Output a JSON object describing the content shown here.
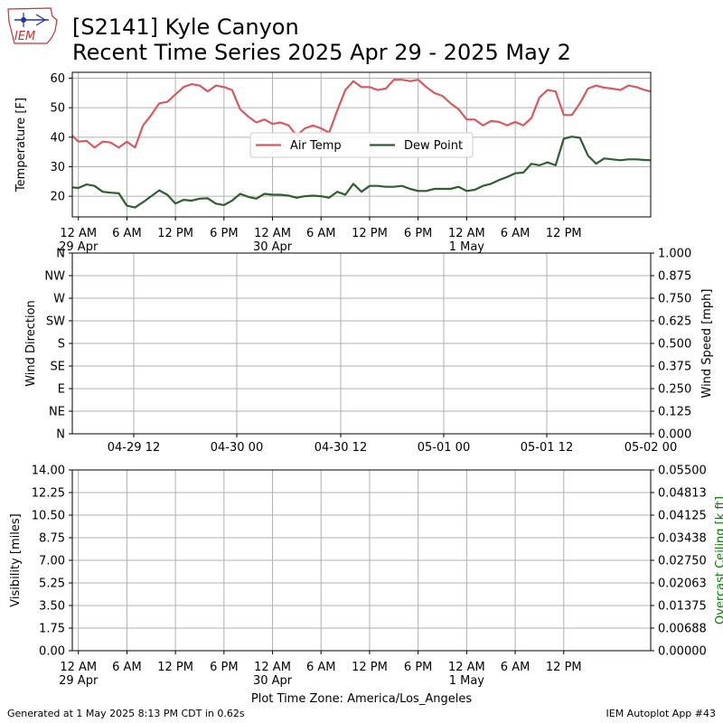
{
  "title_line1": "[S2141] Kyle Canyon",
  "title_line2": "Recent Time Series 2025 Apr 29 - 2025 May 2",
  "logo_text": "IEM",
  "footer_left": "Generated at 1 May 2025 8:13 PM CDT in 0.62s",
  "footer_right": "IEM Autoplot App #43",
  "colors": {
    "air_temp": "#d9595f",
    "dew_point": "#2e5f2e",
    "grid": "#b0b0b0",
    "ceiling_label": "#008000"
  },
  "chart_data": [
    {
      "type": "line",
      "ylabel": "Temperature [F]",
      "ylim": [
        13,
        62
      ],
      "yticks": [
        20,
        30,
        40,
        50,
        60
      ],
      "xlim_hours": [
        -0.75,
        70.75
      ],
      "x_axis_start": "2025-04-29 00:00 America/Los_Angeles",
      "x_ticks": [
        {
          "hour": 0,
          "label": "12 AM",
          "sub": "29 Apr"
        },
        {
          "hour": 6,
          "label": "6 AM",
          "sub": ""
        },
        {
          "hour": 12,
          "label": "12 PM",
          "sub": ""
        },
        {
          "hour": 18,
          "label": "6 PM",
          "sub": ""
        },
        {
          "hour": 24,
          "label": "12 AM",
          "sub": "30 Apr"
        },
        {
          "hour": 30,
          "label": "6 AM",
          "sub": ""
        },
        {
          "hour": 36,
          "label": "12 PM",
          "sub": ""
        },
        {
          "hour": 42,
          "label": "6 PM",
          "sub": ""
        },
        {
          "hour": 48,
          "label": "12 AM",
          "sub": "1 May"
        },
        {
          "hour": 54,
          "label": "6 AM",
          "sub": ""
        },
        {
          "hour": 60,
          "label": "12 PM",
          "sub": ""
        }
      ],
      "grid": true,
      "legend": "center",
      "series": [
        {
          "name": "Air Temp",
          "points": [
            [
              -0.75,
              40.5
            ],
            [
              0,
              38.5
            ],
            [
              1,
              38.8
            ],
            [
              2,
              36.5
            ],
            [
              3,
              38.5
            ],
            [
              4,
              38.2
            ],
            [
              5,
              36.5
            ],
            [
              6,
              38.5
            ],
            [
              7,
              36.5
            ],
            [
              8,
              44
            ],
            [
              9,
              47.5
            ],
            [
              10,
              51.5
            ],
            [
              11,
              52
            ],
            [
              12,
              54.5
            ],
            [
              13,
              57
            ],
            [
              14,
              58
            ],
            [
              15,
              57.5
            ],
            [
              16,
              55.5
            ],
            [
              17,
              57.5
            ],
            [
              18,
              57
            ],
            [
              19,
              56
            ],
            [
              20,
              49.5
            ],
            [
              21,
              47
            ],
            [
              22,
              45
            ],
            [
              23,
              46
            ],
            [
              24,
              44.5
            ],
            [
              25,
              45
            ],
            [
              26,
              44
            ],
            [
              27,
              40.5
            ],
            [
              28,
              43
            ],
            [
              29,
              44
            ],
            [
              30,
              43
            ],
            [
              31,
              41.5
            ],
            [
              32,
              49
            ],
            [
              33,
              56
            ],
            [
              34,
              59
            ],
            [
              35,
              57
            ],
            [
              36,
              57
            ],
            [
              37,
              56
            ],
            [
              38,
              56.5
            ],
            [
              39,
              59.5
            ],
            [
              40,
              59.5
            ],
            [
              41,
              59
            ],
            [
              42,
              59.5
            ],
            [
              43,
              57
            ],
            [
              44,
              55
            ],
            [
              45,
              54
            ],
            [
              46,
              51.5
            ],
            [
              47,
              49.5
            ],
            [
              48,
              46
            ],
            [
              49,
              46
            ],
            [
              50,
              44
            ],
            [
              51,
              45.5
            ],
            [
              52,
              45.2
            ],
            [
              53,
              44
            ],
            [
              54,
              45.2
            ],
            [
              55,
              44
            ],
            [
              56,
              46.5
            ],
            [
              57,
              53.5
            ],
            [
              58,
              56
            ],
            [
              59,
              55.5
            ],
            [
              60,
              47.5
            ],
            [
              61,
              47.5
            ],
            [
              62,
              51.5
            ],
            [
              63,
              56.5
            ],
            [
              64,
              57.5
            ],
            [
              65,
              56.8
            ],
            [
              66,
              56.5
            ],
            [
              67,
              56
            ],
            [
              68,
              57.5
            ],
            [
              69,
              57
            ],
            [
              70,
              56
            ],
            [
              70.75,
              55.5
            ]
          ]
        },
        {
          "name": "Dew Point",
          "points": [
            [
              -0.75,
              23
            ],
            [
              0,
              22.8
            ],
            [
              1,
              24
            ],
            [
              2,
              23.5
            ],
            [
              3,
              21.5
            ],
            [
              4,
              21.2
            ],
            [
              5,
              21
            ],
            [
              6,
              16.8
            ],
            [
              7,
              16.2
            ],
            [
              8,
              18
            ],
            [
              9,
              20
            ],
            [
              10,
              22
            ],
            [
              11,
              20.5
            ],
            [
              12,
              17.5
            ],
            [
              13,
              18.8
            ],
            [
              14,
              18.5
            ],
            [
              15,
              19.2
            ],
            [
              16,
              19.3
            ],
            [
              17,
              17.5
            ],
            [
              18,
              17
            ],
            [
              19,
              18.5
            ],
            [
              20,
              20.8
            ],
            [
              21,
              19.8
            ],
            [
              22,
              19.2
            ],
            [
              23,
              20.8
            ],
            [
              24,
              20.5
            ],
            [
              25,
              20.5
            ],
            [
              26,
              20.2
            ],
            [
              27,
              19.5
            ],
            [
              28,
              20
            ],
            [
              29,
              20.2
            ],
            [
              30,
              20
            ],
            [
              31,
              19.5
            ],
            [
              32,
              21.5
            ],
            [
              33,
              20.5
            ],
            [
              34,
              24.2
            ],
            [
              35,
              21.5
            ],
            [
              36,
              23.5
            ],
            [
              37,
              23.5
            ],
            [
              38,
              23.2
            ],
            [
              39,
              23.2
            ],
            [
              40,
              23.5
            ],
            [
              41,
              22.5
            ],
            [
              42,
              21.8
            ],
            [
              43,
              21.8
            ],
            [
              44,
              22.5
            ],
            [
              45,
              22.5
            ],
            [
              46,
              22.5
            ],
            [
              47,
              23.2
            ],
            [
              48,
              21.8
            ],
            [
              49,
              22.2
            ],
            [
              50,
              23.5
            ],
            [
              51,
              24.2
            ],
            [
              52,
              25.5
            ],
            [
              53,
              26.5
            ],
            [
              54,
              27.8
            ],
            [
              55,
              28
            ],
            [
              56,
              31
            ],
            [
              57,
              30.5
            ],
            [
              58,
              31.5
            ],
            [
              59,
              30.5
            ],
            [
              60,
              39.5
            ],
            [
              61,
              40.2
            ],
            [
              62,
              39.8
            ],
            [
              63,
              33.8
            ],
            [
              64,
              31
            ],
            [
              65,
              32.8
            ],
            [
              66,
              32.5
            ],
            [
              67,
              32.2
            ],
            [
              68,
              32.5
            ],
            [
              69,
              32.5
            ],
            [
              70,
              32.3
            ],
            [
              70.75,
              32.2
            ]
          ]
        }
      ]
    },
    {
      "type": "line",
      "ylabel": "Wind Direction",
      "y2label": "Wind Speed [mph]",
      "yticks": [
        "N",
        "NE",
        "E",
        "SE",
        "S",
        "SW",
        "W",
        "NW",
        "N"
      ],
      "y2ticks": [
        "0.000",
        "0.125",
        "0.250",
        "0.375",
        "0.500",
        "0.625",
        "0.750",
        "0.875",
        "1.000"
      ],
      "y2lim": [
        0,
        1
      ],
      "x_ticks": [
        "04-29 12",
        "04-30 00",
        "04-30 12",
        "05-01 00",
        "05-01 12",
        "05-02 00"
      ],
      "grid": true,
      "series": []
    },
    {
      "type": "line",
      "ylabel": "Visibility [miles]",
      "y2label": "Overcast Ceiling [k ft]",
      "yticks": [
        "0.00",
        "1.75",
        "3.50",
        "5.25",
        "7.00",
        "8.75",
        "10.50",
        "12.25",
        "14.00"
      ],
      "y2ticks": [
        "0.00000",
        "0.00688",
        "0.01375",
        "0.02063",
        "0.02750",
        "0.03438",
        "0.04125",
        "0.04813",
        "0.05500"
      ],
      "ylim": [
        0,
        14
      ],
      "y2lim": [
        0,
        0.055
      ],
      "x_ticks": [
        {
          "label": "12 AM",
          "sub": "29 Apr"
        },
        {
          "label": "6 AM",
          "sub": ""
        },
        {
          "label": "12 PM",
          "sub": ""
        },
        {
          "label": "6 PM",
          "sub": ""
        },
        {
          "label": "12 AM",
          "sub": "30 Apr"
        },
        {
          "label": "6 AM",
          "sub": ""
        },
        {
          "label": "12 PM",
          "sub": ""
        },
        {
          "label": "6 PM",
          "sub": ""
        },
        {
          "label": "12 AM",
          "sub": "1 May"
        },
        {
          "label": "6 AM",
          "sub": ""
        },
        {
          "label": "12 PM",
          "sub": ""
        }
      ],
      "xlabel": "Plot Time Zone: America/Los_Angeles",
      "grid": true,
      "series": []
    }
  ]
}
